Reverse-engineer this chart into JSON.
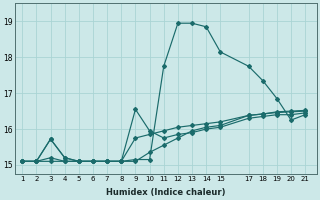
{
  "xlabel": "Humidex (Indice chaleur)",
  "background_color": "#cce8e8",
  "grid_color": "#aad4d4",
  "line_color": "#1a6b6b",
  "x_ticks": [
    1,
    2,
    3,
    4,
    5,
    6,
    7,
    8,
    9,
    10,
    11,
    12,
    13,
    14,
    15,
    17,
    18,
    19,
    20,
    21
  ],
  "ylim": [
    14.75,
    19.5
  ],
  "xlim": [
    0.5,
    21.8
  ],
  "yticks": [
    15,
    16,
    17,
    18,
    19
  ],
  "lines": [
    {
      "x": [
        1,
        2,
        3,
        4,
        5,
        6,
        7,
        8,
        9,
        10,
        11,
        12,
        13,
        14,
        15,
        17,
        18,
        19,
        20,
        21
      ],
      "y": [
        15.1,
        15.1,
        15.2,
        15.1,
        15.1,
        15.1,
        15.1,
        15.1,
        15.15,
        15.15,
        17.75,
        18.95,
        18.95,
        18.85,
        18.15,
        17.75,
        17.35,
        16.85,
        16.25,
        16.4
      ]
    },
    {
      "x": [
        1,
        2,
        3,
        4,
        5,
        6,
        7,
        8,
        9,
        10,
        11,
        12,
        13,
        14,
        15,
        17,
        18,
        19,
        20,
        21
      ],
      "y": [
        15.1,
        15.1,
        15.72,
        15.2,
        15.1,
        15.1,
        15.1,
        15.1,
        16.55,
        15.95,
        15.75,
        15.85,
        15.9,
        16.0,
        16.05,
        16.3,
        16.35,
        16.4,
        16.4,
        16.45
      ]
    },
    {
      "x": [
        1,
        2,
        3,
        4,
        5,
        6,
        7,
        8,
        9,
        10,
        11,
        12,
        13,
        14,
        15,
        17,
        18,
        19,
        20,
        21
      ],
      "y": [
        15.1,
        15.1,
        15.72,
        15.2,
        15.1,
        15.1,
        15.1,
        15.1,
        15.75,
        15.85,
        15.95,
        16.05,
        16.1,
        16.15,
        16.2,
        16.38,
        16.42,
        16.46,
        16.48,
        16.5
      ]
    },
    {
      "x": [
        1,
        2,
        3,
        4,
        5,
        6,
        7,
        8,
        9,
        10,
        11,
        12,
        13,
        14,
        15,
        17,
        18,
        19,
        20,
        21
      ],
      "y": [
        15.1,
        15.1,
        15.1,
        15.1,
        15.1,
        15.1,
        15.1,
        15.1,
        15.1,
        15.35,
        15.55,
        15.75,
        15.95,
        16.05,
        16.1,
        16.38,
        16.42,
        16.48,
        16.5,
        16.52
      ]
    }
  ]
}
